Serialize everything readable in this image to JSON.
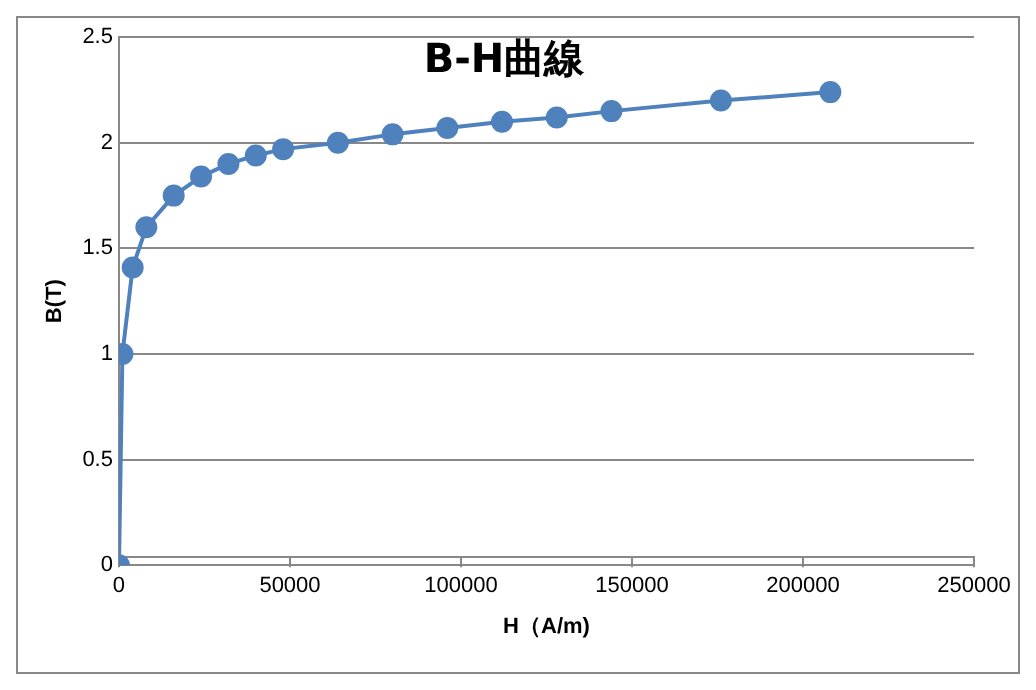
{
  "chart_data": {
    "type": "line",
    "title": "B-H曲線",
    "xlabel": "H（A/m)",
    "ylabel": "B(T)",
    "x": [
      0,
      1000,
      4000,
      8000,
      16000,
      24000,
      32000,
      40000,
      48000,
      64000,
      80000,
      96000,
      112000,
      128000,
      144000,
      176000,
      208000
    ],
    "series": [
      {
        "color": "#4f81bd",
        "values": [
          0,
          1.0,
          1.41,
          1.6,
          1.75,
          1.84,
          1.9,
          1.94,
          1.97,
          2.0,
          2.04,
          2.07,
          2.1,
          2.12,
          2.15,
          2.2,
          2.24
        ]
      }
    ],
    "xlim": [
      0,
      250000
    ],
    "xticks": [
      0,
      50000,
      100000,
      150000,
      200000,
      250000
    ],
    "ylim": [
      0,
      2.5
    ],
    "yticks": [
      0,
      0.5,
      1,
      1.5,
      2,
      2.5
    ],
    "grid": "y",
    "marker": "circle",
    "legend": false
  }
}
